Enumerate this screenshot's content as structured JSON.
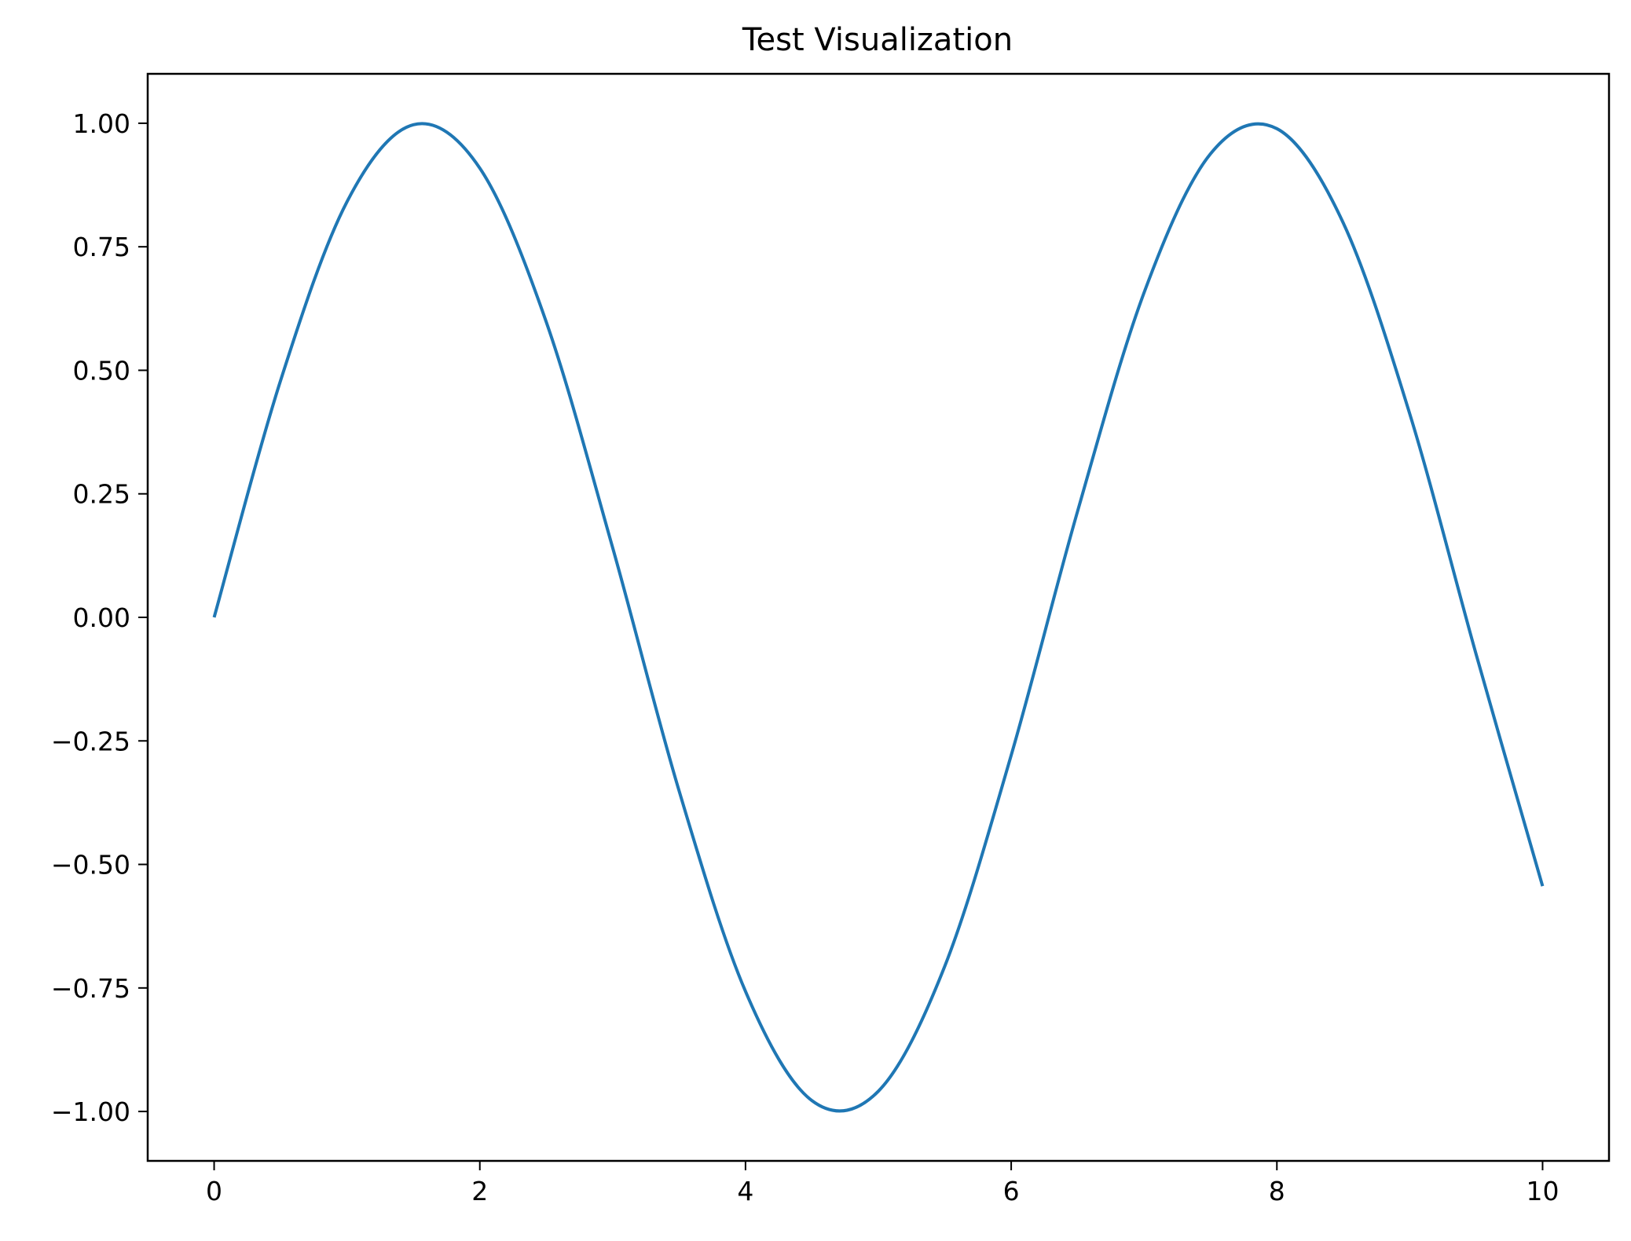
{
  "chart_data": {
    "type": "line",
    "title": "Test Visualization",
    "xlabel": "",
    "ylabel": "",
    "xlim": [
      -0.5,
      10.5
    ],
    "ylim": [
      -1.1,
      1.1
    ],
    "xticks": [
      0,
      2,
      4,
      6,
      8,
      10
    ],
    "xtick_labels": [
      "0",
      "2",
      "4",
      "6",
      "8",
      "10"
    ],
    "yticks": [
      1.0,
      0.75,
      0.5,
      0.25,
      0.0,
      -0.25,
      -0.5,
      -0.75,
      -1.0
    ],
    "ytick_labels": [
      "1.00",
      "0.75",
      "0.50",
      "0.25",
      "0.00",
      "−0.25",
      "−0.50",
      "−0.75",
      "−1.00"
    ],
    "grid": false,
    "series": [
      {
        "color": "#1f77b4",
        "x": [
          0.0,
          0.5,
          1.0,
          1.5,
          2.0,
          2.5,
          3.0,
          3.5,
          4.0,
          4.5,
          5.0,
          5.5,
          6.0,
          6.5,
          7.0,
          7.5,
          8.0,
          8.5,
          9.0,
          9.5,
          10.0
        ],
        "y": [
          0.0,
          0.479,
          0.841,
          0.997,
          0.909,
          0.598,
          0.141,
          -0.351,
          -0.757,
          -0.978,
          -0.959,
          -0.706,
          -0.279,
          0.215,
          0.657,
          0.938,
          0.989,
          0.798,
          0.412,
          -0.075,
          -0.544
        ]
      }
    ]
  }
}
